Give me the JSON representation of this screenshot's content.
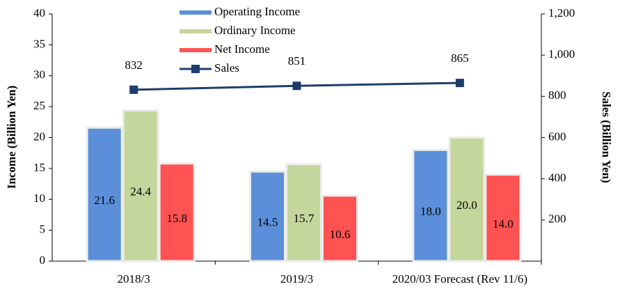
{
  "chart_data": {
    "type": "bar",
    "y_label": "Income  (Billion Yen)",
    "y2_label": "Sales (Billion Yen)",
    "categories": [
      "2018/3",
      "2019/3",
      "2020/03 Forecast (Rev 11/6)"
    ],
    "series": [
      {
        "name": "Operating Income",
        "color": "#5b8fd9",
        "values": [
          21.6,
          14.5,
          18
        ],
        "value_labels": [
          "21.6",
          "14.5",
          "18.0"
        ]
      },
      {
        "name": "Ordinary Income",
        "color": "#c3d69b",
        "values": [
          24.4,
          15.7,
          20
        ],
        "value_labels": [
          "24.4",
          "15.7",
          "20.0"
        ]
      },
      {
        "name": "Net Income",
        "color": "#ff5252",
        "values": [
          15.8,
          10.6,
          14
        ],
        "value_labels": [
          "15.8",
          "10.6",
          "14.0"
        ]
      },
      {
        "name": "Sales",
        "type": "line",
        "axis": "y2",
        "color": "#1f3d6b",
        "values": [
          832,
          851,
          865
        ]
      }
    ],
    "ylim": [
      0,
      40
    ],
    "yticks": [
      0,
      5,
      10,
      15,
      20,
      25,
      30,
      35,
      40
    ],
    "y2lim": [
      0,
      1200
    ],
    "y2ticks": [
      200,
      400,
      600,
      800,
      {
        "value": 1000,
        "label": "1,000"
      },
      {
        "value": 1200,
        "label": "1,200"
      }
    ]
  }
}
